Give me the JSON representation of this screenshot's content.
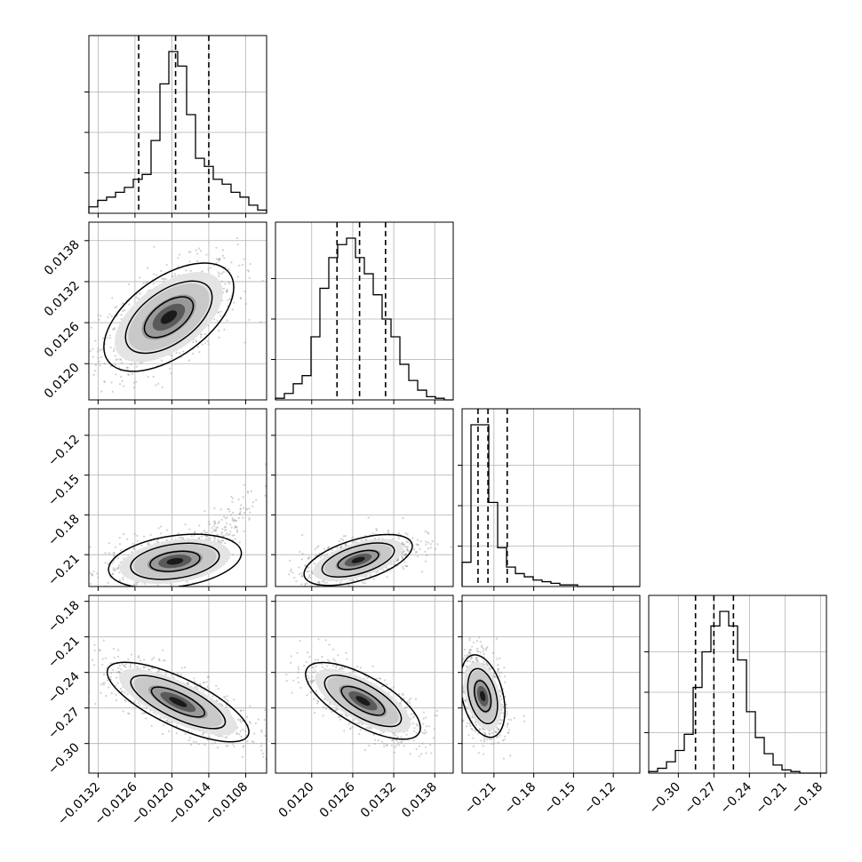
{
  "chart_data": {
    "type": "corner",
    "parameters": [
      {
        "index": 0,
        "range": [
          -0.01335,
          -0.01046
        ],
        "ticks": [
          "−0.0132",
          "−0.0126",
          "−0.0120",
          "−0.0114",
          "−0.0108"
        ],
        "tick_values": [
          -0.0132,
          -0.0126,
          -0.012,
          -0.0114,
          -0.0108
        ],
        "quantiles": [
          -0.01254,
          -0.01194,
          -0.0114
        ],
        "hist": [
          4,
          8,
          10,
          13,
          16,
          21,
          24,
          45,
          80,
          100,
          91,
          61,
          34,
          29,
          21,
          18,
          13,
          10,
          5,
          2
        ]
      },
      {
        "index": 1,
        "range": [
          0.01147,
          0.01407
        ],
        "ticks": [
          "0.0120",
          "0.0126",
          "0.0132",
          "0.0138"
        ],
        "tick_values": [
          0.012,
          0.0126,
          0.0132,
          0.0138
        ],
        "quantiles": [
          0.01237,
          0.0127,
          0.01308
        ],
        "hist": [
          1,
          4,
          10,
          15,
          39,
          69,
          88,
          96,
          100,
          88,
          78,
          65,
          50,
          39,
          22,
          12,
          6,
          2,
          1,
          0
        ]
      },
      {
        "index": 2,
        "range": [
          -0.234,
          -0.1
        ],
        "ticks": [
          "−0.21",
          "−0.18",
          "−0.15",
          "−0.12"
        ],
        "tick_values": [
          -0.21,
          -0.18,
          -0.15,
          -0.12
        ],
        "quantiles": [
          -0.222,
          -0.2145,
          -0.2
        ],
        "hist": [
          15,
          100,
          100,
          52,
          24,
          12,
          8,
          6,
          4,
          3,
          2,
          1,
          1,
          0,
          0,
          0,
          0,
          0,
          0,
          0
        ]
      },
      {
        "index": 3,
        "range": [
          -0.325,
          -0.175
        ],
        "ticks": [
          "−0.30",
          "−0.27",
          "−0.24",
          "−0.21",
          "−0.18"
        ],
        "tick_values": [
          -0.3,
          -0.27,
          -0.24,
          -0.21,
          -0.18
        ],
        "quantiles": [
          -0.2855,
          -0.27,
          -0.2535
        ],
        "hist": [
          1,
          3,
          7,
          14,
          24,
          53,
          75,
          91,
          100,
          91,
          70,
          38,
          22,
          12,
          5,
          2,
          1,
          0,
          0,
          0
        ]
      }
    ],
    "density_panels": [
      {
        "row": 1,
        "col": 0,
        "mean": [
          -0.01205,
          0.01268
        ],
        "sd": [
          0.00044,
          0.00033
        ],
        "corr": 0.55
      },
      {
        "row": 2,
        "col": 0,
        "mean": [
          -0.01195,
          -0.215
        ],
        "sd": [
          0.00045,
          0.0085
        ],
        "corr": 0.3,
        "curve": true
      },
      {
        "row": 2,
        "col": 1,
        "mean": [
          0.01268,
          -0.214
        ],
        "sd": [
          0.00033,
          0.008
        ],
        "corr": 0.55
      },
      {
        "row": 3,
        "col": 0,
        "mean": [
          -0.0119,
          -0.265
        ],
        "sd": [
          0.00048,
          0.014
        ],
        "corr": -0.75
      },
      {
        "row": 3,
        "col": 1,
        "mean": [
          0.01275,
          -0.264
        ],
        "sd": [
          0.00035,
          0.0135
        ],
        "corr": -0.7
      },
      {
        "row": 3,
        "col": 2,
        "mean": [
          -0.2185,
          -0.26
        ],
        "sd": [
          0.007,
          0.0145
        ],
        "corr": -0.35
      }
    ],
    "diag_y_ticks": [
      0.25,
      0.5,
      0.75
    ],
    "grid": true,
    "xlabel": "",
    "ylabel": "",
    "colors": {
      "hist": "#000000",
      "points": "#9a9a9a",
      "contour": "#000000",
      "grid": "#b0b0b0"
    }
  }
}
